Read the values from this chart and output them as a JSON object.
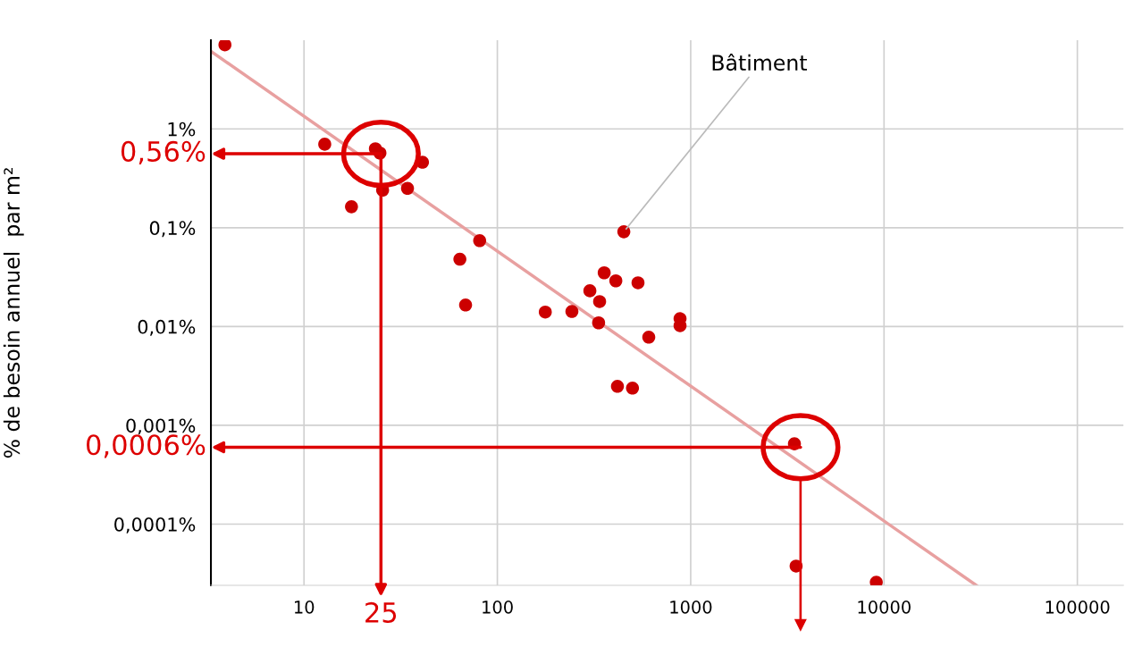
{
  "chart_data": {
    "type": "scatter",
    "ylabel": "% de besoin annuel  par m²",
    "log": "xy",
    "xlim": [
      3.3,
      173000
    ],
    "ylim": [
      2.4e-05,
      7.9
    ],
    "xticks": [
      10,
      100,
      1000,
      10000,
      100000
    ],
    "yticks": [
      {
        "value": 1,
        "label": "1%"
      },
      {
        "value": 0.1,
        "label": "0,1%"
      },
      {
        "value": 0.01,
        "label": "0,01%"
      },
      {
        "value": 0.001,
        "label": "0,001%"
      },
      {
        "value": 0.0001,
        "label": "0,0001%"
      }
    ],
    "grid": true,
    "legend": false,
    "series": [
      {
        "marker": "circle",
        "color": "#cc0000",
        "x": [
          3.9,
          12.8,
          23.4,
          24.7,
          17.6,
          25.5,
          34.3,
          41,
          81,
          64,
          68.5,
          177,
          243,
          451,
          357,
          301,
          410,
          534,
          338,
          334,
          607,
          881,
          881,
          418,
          500,
          3440,
          3510,
          9120
        ],
        "values": [
          7.1,
          0.7,
          0.63,
          0.57,
          0.163,
          0.24,
          0.25,
          0.46,
          0.074,
          0.048,
          0.0165,
          0.014,
          0.0142,
          0.091,
          0.035,
          0.023,
          0.029,
          0.0277,
          0.0179,
          0.0109,
          0.0078,
          0.012,
          0.0102,
          0.00248,
          0.00238,
          0.00065,
          3.76e-05,
          2.58e-05
        ]
      },
      {
        "type": "line",
        "marker": "none",
        "color": "#e8a0a0",
        "x": [
          3.3,
          30000
        ],
        "values": [
          6.1,
          2.4e-05
        ]
      }
    ],
    "annotations": [
      {
        "text": "Bâtiment",
        "x": 451,
        "y": 0.091
      },
      {
        "text": "0,56%",
        "x": 25,
        "y": 0.56
      },
      {
        "text": "25",
        "x": 25,
        "y": 0.56
      },
      {
        "text": "0,0006%",
        "x": 3700,
        "y": 0.0006
      }
    ]
  }
}
